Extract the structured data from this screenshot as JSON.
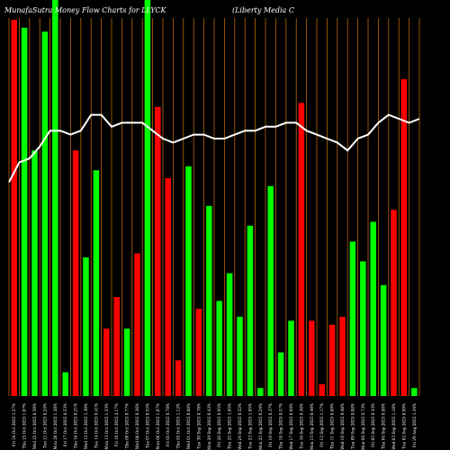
{
  "chart_data": {
    "type": "bar",
    "title_left": "MunafaSutra  Money Flow  Charts for LLYCK",
    "title_right": "(Liberty Media  C",
    "ylim": [
      0,
      100
    ],
    "bar_values": [
      95,
      93,
      62,
      92,
      100,
      6,
      62,
      35,
      57,
      17,
      25,
      17,
      36,
      100,
      73,
      55,
      9,
      58,
      22,
      48,
      24,
      31,
      20,
      43,
      2,
      53,
      11,
      19,
      74,
      19,
      3,
      18,
      20,
      39,
      34,
      44,
      28,
      47,
      80,
      2
    ],
    "bar_colors": [
      "red",
      "green",
      "green",
      "green",
      "green",
      "green",
      "red",
      "green",
      "green",
      "red",
      "red",
      "green",
      "red",
      "green",
      "red",
      "red",
      "red",
      "green",
      "red",
      "green",
      "green",
      "green",
      "green",
      "green",
      "green",
      "green",
      "green",
      "green",
      "red",
      "red",
      "red",
      "red",
      "red",
      "green",
      "green",
      "green",
      "green",
      "red",
      "red",
      "green"
    ],
    "flow_line": [
      54,
      59,
      60,
      63,
      67,
      67,
      66,
      67,
      71,
      71,
      68,
      69,
      69,
      69,
      67,
      65,
      64,
      65,
      66,
      66,
      65,
      65,
      66,
      67,
      67,
      68,
      68,
      69,
      69,
      67,
      66,
      65,
      64,
      62,
      65,
      66,
      69,
      71,
      70,
      69,
      70
    ],
    "x_tick_labels": [
      "Fri 24 Oct 2025 1.57%",
      "Thu 23 Oct 2025 1.07%",
      "Wed 22 Oct 2025 0.50%",
      "Tue 21 Oct 2025 0.24%",
      "Mon 20 Oct 2025 1.38%",
      "Fri 17 Oct 2025 0.53%",
      "Thu 16 Oct 2025 0.21%",
      "Wed 15 Oct 2025 1.30%",
      "Tue 14 Oct 2025 0.41%",
      "Mon 13 Oct 2025 1.33%",
      "Fri 10 Oct 2025 2.17%",
      "Thu 09 Oct 2025 0.77%",
      "Wed 08 Oct 2025 0.36%",
      "Tue 07 Oct 2025 0.55%",
      "Mon 06 Oct 2025 1.87%",
      "Fri 03 Oct 2025 0.78%",
      "Thu 02 Oct 2025 1.12%",
      "Wed 01 Oct 2025 0.86%",
      "Tue 30 Sep 2025 0.78%",
      "Mon 29 Sep 2025 0.43%",
      "Fri 26 Sep 2025 0.95%",
      "Thu 25 Sep 2025 1.65%",
      "Wed 24 Sep 2025 0.52%",
      "Tue 23 Sep 2025 1.95%",
      "Mon 22 Sep 2025 0.24%",
      "Fri 19 Sep 2025 0.37%",
      "Thu 18 Sep 2025 0.57%",
      "Wed 17 Sep 2025 0.84%",
      "Tue 16 Sep 2025 0.36%",
      "Mon 15 Sep 2025 0.40%",
      "Fri 12 Sep 2025 1.17%",
      "Thu 11 Sep 2025 0.69%",
      "Wed 10 Sep 2025 0.48%",
      "Tue 09 Sep 2025 0.88%",
      "Mon 08 Sep 2025 0.73%",
      "Fri 05 Sep 2025 0.33%",
      "Thu 04 Sep 2025 0.88%",
      "Wed 03 Sep 2025 1.18%",
      "Tue 02 Sep 2025 0.99%",
      "Fri 29 Aug 2025 1.34%"
    ],
    "xlabel": "",
    "ylabel": ""
  },
  "colors": {
    "background": "#000000",
    "grid": "#b8660b",
    "red": "#ff0000",
    "green": "#00ff00",
    "line": "#ffffff"
  }
}
